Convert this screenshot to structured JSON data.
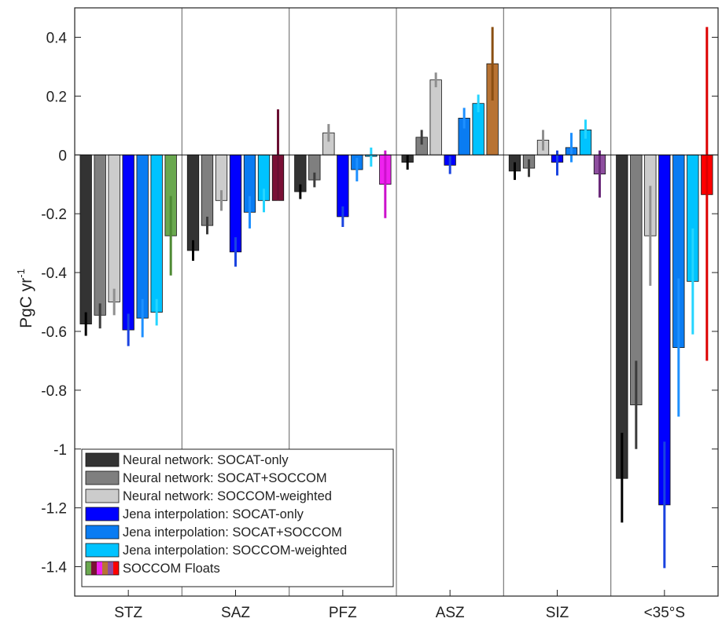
{
  "chart_data": {
    "type": "bar",
    "ylabel": "PgC yr",
    "ylabel_superscript": "-1",
    "ylim": [
      -1.5,
      0.5
    ],
    "yticks": [
      0.4,
      0.2,
      0,
      -0.2,
      -0.4,
      -0.6,
      -0.8,
      -1,
      -1.2,
      -1.4
    ],
    "ytick_labels": [
      "0.4",
      "0.2",
      "0",
      "-0.2",
      "-0.4",
      "-0.6",
      "-0.8",
      "-1",
      "-1.2",
      "-1.4"
    ],
    "grid": false,
    "legend_position": "bottom-left",
    "categories": [
      "STZ",
      "SAZ",
      "PFZ",
      "ASZ",
      "SIZ",
      "<35°S"
    ],
    "series": [
      {
        "name": "Neural network: SOCAT-only",
        "color": "#333333",
        "err_color": "#000000",
        "values": [
          -0.575,
          -0.325,
          -0.125,
          -0.025,
          -0.055,
          -1.1
        ],
        "err_low": [
          -0.615,
          -0.36,
          -0.15,
          -0.05,
          -0.085,
          -1.25
        ],
        "err_high": [
          -0.535,
          -0.29,
          -0.1,
          0.0,
          -0.025,
          -0.945
        ]
      },
      {
        "name": "Neural network: SOCAT+SOCCOM",
        "color": "#7f7f7f",
        "err_color": "#3c3c3c",
        "values": [
          -0.545,
          -0.24,
          -0.085,
          0.06,
          -0.045,
          -0.85
        ],
        "err_low": [
          -0.59,
          -0.27,
          -0.11,
          0.035,
          -0.075,
          -1.0
        ],
        "err_high": [
          -0.505,
          -0.21,
          -0.06,
          0.085,
          -0.015,
          -0.7
        ]
      },
      {
        "name": "Neural network: SOCCOM-weighted",
        "color": "#cccccc",
        "err_color": "#8f8f8f",
        "values": [
          -0.5,
          -0.155,
          0.075,
          0.255,
          0.05,
          -0.275
        ],
        "err_low": [
          -0.545,
          -0.19,
          0.045,
          0.23,
          0.015,
          -0.445
        ],
        "err_high": [
          -0.455,
          -0.12,
          0.105,
          0.28,
          0.085,
          -0.105
        ]
      },
      {
        "name": "Jena interpolation: SOCAT-only",
        "color": "#0000ff",
        "err_color": "#1a43e0",
        "values": [
          -0.595,
          -0.33,
          -0.21,
          -0.035,
          -0.025,
          -1.19
        ],
        "err_low": [
          -0.65,
          -0.38,
          -0.245,
          -0.065,
          -0.07,
          -1.405
        ],
        "err_high": [
          -0.54,
          -0.28,
          -0.175,
          -0.005,
          0.015,
          -0.975
        ]
      },
      {
        "name": "Jena interpolation: SOCAT+SOCCOM",
        "color": "#0a7cf2",
        "err_color": "#1e90ff",
        "values": [
          -0.555,
          -0.195,
          -0.05,
          0.125,
          0.025,
          -0.655
        ],
        "err_low": [
          -0.62,
          -0.25,
          -0.09,
          0.09,
          -0.025,
          -0.89
        ],
        "err_high": [
          -0.49,
          -0.14,
          -0.01,
          0.16,
          0.075,
          -0.42
        ]
      },
      {
        "name": "Jena interpolation: SOCCOM-weighted",
        "color": "#00c3ff",
        "err_color": "#25d5ff",
        "values": [
          -0.535,
          -0.155,
          -0.005,
          0.175,
          0.085,
          -0.43
        ],
        "err_low": [
          -0.58,
          -0.195,
          -0.04,
          0.145,
          0.055,
          -0.61
        ],
        "err_high": [
          -0.49,
          -0.115,
          0.025,
          0.205,
          0.12,
          -0.25
        ]
      },
      {
        "name": "SOCCOM Floats",
        "colors": [
          "#6aa84f",
          "#7a1036",
          "#ee22ee",
          "#b87333",
          "#8e4f9f",
          "#ff0000"
        ],
        "err_colors": [
          "#4e8a34",
          "#6a0f32",
          "#cc11cc",
          "#8a4f12",
          "#6a2a7a",
          "#dd0000"
        ],
        "values": [
          -0.275,
          -0.155,
          -0.1,
          0.31,
          -0.065,
          -0.135
        ],
        "err_low": [
          -0.41,
          -0.155,
          -0.215,
          0.185,
          -0.145,
          -0.7
        ],
        "err_high": [
          -0.14,
          0.155,
          0.015,
          0.435,
          0.015,
          0.435
        ]
      }
    ]
  }
}
